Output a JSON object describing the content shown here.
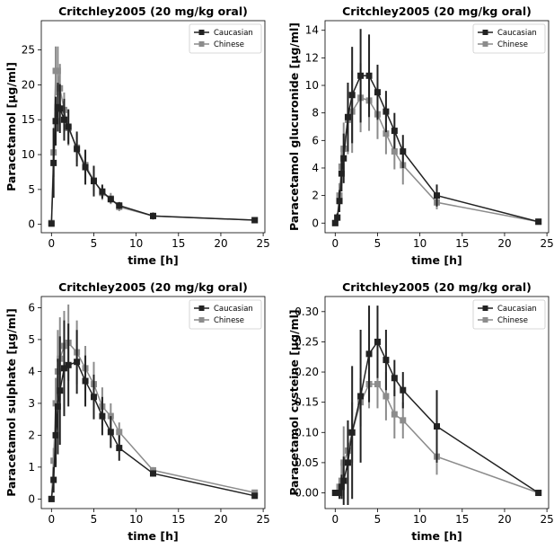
{
  "chart_data": [
    {
      "type": "line",
      "title": "Critchley2005 (20 mg/kg oral)",
      "xlabel": "time [h]",
      "ylabel": "Paracetamol [μg/ml]",
      "xlim": [
        -1.2,
        25.2
      ],
      "ylim": [
        -1.2,
        29.2
      ],
      "xticks": [
        0,
        5,
        10,
        15,
        20,
        25
      ],
      "yticks": [
        0,
        5,
        10,
        15,
        20,
        25
      ],
      "legend": "top-right",
      "series": [
        {
          "name": "Caucasian",
          "color": "#222222",
          "x": [
            0,
            0.25,
            0.5,
            0.75,
            1,
            1.5,
            2,
            3,
            4,
            5,
            6,
            7,
            8,
            12,
            24
          ],
          "y": [
            0.1,
            8.8,
            14.8,
            16.8,
            16.6,
            15.0,
            14.0,
            10.8,
            8.2,
            6.2,
            4.7,
            3.6,
            2.7,
            1.2,
            0.6
          ],
          "err": [
            0,
            5,
            3.5,
            3.5,
            3.5,
            3,
            2.5,
            2.5,
            2.5,
            2.2,
            1,
            0.5,
            0.5,
            0.5,
            0.3
          ]
        },
        {
          "name": "Chinese",
          "color": "#8c8c8c",
          "x": [
            0,
            0.25,
            0.5,
            0.75,
            1,
            1.5,
            2,
            3,
            4,
            5,
            6,
            7,
            8,
            12,
            24
          ],
          "y": [
            0.2,
            10.3,
            22.0,
            22.0,
            19.5,
            16.4,
            13.8,
            11.0,
            8.5,
            6.3,
            4.5,
            3.7,
            2.5,
            1.2,
            0.6
          ],
          "err": [
            0,
            3.5,
            3.5,
            3.5,
            3.5,
            2.5,
            2.5,
            2,
            2,
            1.5,
            1,
            0.8,
            0.6,
            0.4,
            0.3
          ]
        }
      ]
    },
    {
      "type": "line",
      "title": "Critchley2005 (20 mg/kg oral)",
      "xlabel": "time [h]",
      "ylabel": "Paracetamol glucuronide [μg/ml]",
      "xlim": [
        -1.2,
        25.2
      ],
      "ylim": [
        -0.7,
        14.7
      ],
      "xticks": [
        0,
        5,
        10,
        15,
        20,
        25
      ],
      "yticks": [
        0,
        2,
        4,
        6,
        8,
        10,
        12,
        14
      ],
      "legend": "top-right",
      "series": [
        {
          "name": "Caucasian",
          "color": "#222222",
          "x": [
            0,
            0.25,
            0.5,
            0.75,
            1,
            1.5,
            2,
            3,
            4,
            5,
            6,
            7,
            8,
            12,
            24
          ],
          "y": [
            0.0,
            0.4,
            1.6,
            3.6,
            4.7,
            7.7,
            9.3,
            10.7,
            10.7,
            9.5,
            8.1,
            6.7,
            5.2,
            2.0,
            0.1
          ],
          "err": [
            0,
            0.3,
            0.8,
            1.3,
            1.8,
            2.5,
            3.5,
            3.4,
            3,
            2,
            1.5,
            1.3,
            1.2,
            0.8,
            0.1
          ]
        },
        {
          "name": "Chinese",
          "color": "#8c8c8c",
          "x": [
            0,
            0.25,
            0.5,
            0.75,
            1,
            1.5,
            2,
            3,
            4,
            5,
            6,
            7,
            8,
            12,
            24
          ],
          "y": [
            0.0,
            0.4,
            2.0,
            4.1,
            5.4,
            7.5,
            8.1,
            9.1,
            8.9,
            7.9,
            6.5,
            5.2,
            4.2,
            1.5,
            0.1
          ],
          "err": [
            0,
            0.3,
            0.9,
            1.4,
            1.9,
            2.5,
            3,
            2.5,
            2.2,
            1.8,
            1.5,
            1.3,
            1.4,
            0.5,
            0.1
          ]
        }
      ]
    },
    {
      "type": "line",
      "title": "Critchley2005 (20 mg/kg oral)",
      "xlabel": "time [h]",
      "ylabel": "Paracetamol sulphate [μg/ml]",
      "xlim": [
        -1.2,
        25.2
      ],
      "ylim": [
        -0.3,
        6.35
      ],
      "xticks": [
        0,
        5,
        10,
        15,
        20,
        25
      ],
      "yticks": [
        0,
        1,
        2,
        3,
        4,
        5,
        6
      ],
      "legend": "top-right",
      "series": [
        {
          "name": "Caucasian",
          "color": "#222222",
          "x": [
            0,
            0.25,
            0.5,
            0.75,
            1,
            1.5,
            2,
            3,
            4,
            5,
            6,
            7,
            8,
            12,
            24
          ],
          "y": [
            0.0,
            0.6,
            2.0,
            2.9,
            3.4,
            4.1,
            4.2,
            4.3,
            3.7,
            3.2,
            2.6,
            2.1,
            1.6,
            0.8,
            0.1
          ],
          "err": [
            0,
            0.4,
            1.0,
            1.5,
            1.7,
            1.5,
            1.3,
            1.0,
            0.8,
            0.7,
            0.6,
            0.5,
            0.4,
            0.1,
            0.05
          ]
        },
        {
          "name": "Chinese",
          "color": "#8c8c8c",
          "x": [
            0,
            0.25,
            0.5,
            0.75,
            1,
            1.5,
            2,
            3,
            4,
            5,
            6,
            7,
            8,
            12,
            24
          ],
          "y": [
            0.0,
            1.2,
            3.0,
            4.0,
            4.4,
            4.8,
            4.9,
            4.6,
            4.1,
            3.6,
            2.9,
            2.6,
            2.1,
            0.9,
            0.2
          ],
          "err": [
            0,
            0.4,
            0.8,
            1.3,
            1.3,
            1.1,
            1.2,
            1.0,
            0.7,
            0.7,
            0.6,
            0.4,
            0.3,
            0.1,
            0.05
          ]
        }
      ]
    },
    {
      "type": "line",
      "title": "Critchley2005 (20 mg/kg oral)",
      "xlabel": "time [h]",
      "ylabel": "Paracetamol cysteine [μg/ml]",
      "xlim": [
        -1.2,
        25.2
      ],
      "ylim": [
        -0.026,
        0.325
      ],
      "xticks": [
        0,
        5,
        10,
        15,
        20,
        25
      ],
      "yticks": [
        0.0,
        0.05,
        0.1,
        0.15,
        0.2,
        0.25,
        0.3
      ],
      "ytick_labels": [
        "0.00",
        "0.05",
        "0.10",
        "0.15",
        "0.20",
        "0.25",
        "0.30"
      ],
      "legend": "top-right",
      "series": [
        {
          "name": "Caucasian",
          "color": "#222222",
          "x": [
            0,
            0.25,
            0.5,
            0.75,
            1,
            1.5,
            2,
            3,
            4,
            5,
            6,
            7,
            8,
            12,
            24
          ],
          "y": [
            0.0,
            0.0,
            0.0,
            0.01,
            0.02,
            0.05,
            0.1,
            0.16,
            0.23,
            0.25,
            0.22,
            0.19,
            0.17,
            0.11,
            0.0
          ],
          "err": [
            0,
            0,
            0.01,
            0.02,
            0.04,
            0.07,
            0.11,
            0.11,
            0.08,
            0.06,
            0.05,
            0.03,
            0.03,
            0.06,
            0.0
          ]
        },
        {
          "name": "Chinese",
          "color": "#8c8c8c",
          "x": [
            0,
            0.25,
            0.5,
            0.75,
            1,
            1.5,
            2,
            3,
            4,
            5,
            6,
            7,
            8,
            12,
            24
          ],
          "y": [
            0.0,
            0.0,
            0.01,
            0.02,
            0.05,
            0.07,
            0.1,
            0.15,
            0.18,
            0.18,
            0.16,
            0.13,
            0.12,
            0.06,
            0.0
          ],
          "err": [
            0,
            0,
            0.01,
            0.03,
            0.06,
            0.05,
            0.05,
            0.04,
            0.04,
            0.04,
            0.04,
            0.04,
            0.03,
            0.03,
            0.0
          ]
        }
      ]
    }
  ]
}
